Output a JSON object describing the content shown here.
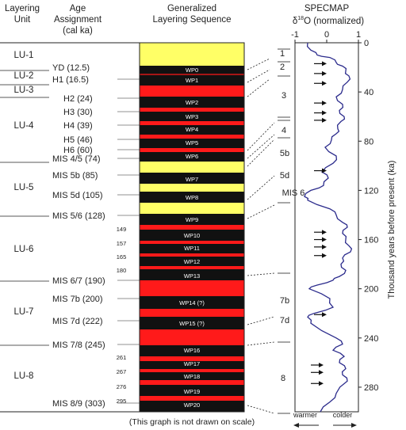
{
  "headers": {
    "unit": [
      "Layering",
      "Unit"
    ],
    "age": [
      "Age",
      "Assignment",
      "(cal ka)"
    ],
    "seq": [
      "Generalized",
      "Layering Sequence"
    ],
    "specmap": "SPECMAP",
    "delta_axis": [
      "δ",
      "18",
      "O (normalized)"
    ]
  },
  "colors": {
    "red": "#ff1a1a",
    "yellow": "#ffff66",
    "black": "#111111",
    "curve": "#2b2b8c"
  },
  "units": [
    "LU-1",
    "LU-2",
    "LU-3",
    "LU-4",
    "LU-5",
    "LU-6",
    "LU-7",
    "LU-8"
  ],
  "ages": [
    "YD  (12.5)",
    "H1  (16.5)",
    "H2  (24)",
    "H3  (30)",
    "H4  (39)",
    "H5  (46)",
    "H6  (60)",
    "MIS 4/5 (74)",
    "MIS 5b  (85)",
    "MIS 5d  (105)",
    "MIS 5/6 (128)",
    "MIS 6/7 (190)",
    "MIS 7b  (200)",
    "MIS 7d  (222)",
    "MIS 7/8 (245)",
    "MIS 8/9 (303)"
  ],
  "small_ages": [
    "149",
    "157",
    "165",
    "180",
    "261",
    "267",
    "276",
    "295"
  ],
  "wp_labels": [
    "WP0",
    "WP1",
    "WP2",
    "WP3",
    "WP4",
    "WP5",
    "WP6",
    "WP7",
    "WP8",
    "WP9",
    "WP10",
    "WP11",
    "WP12",
    "WP13",
    "WP14 (?)",
    "WP15 (?)",
    "WP16",
    "WP17",
    "WP18",
    "WP19",
    "WP20"
  ],
  "stage_labels": [
    "1",
    "2",
    "3",
    "4",
    "5b",
    "5d",
    "MIS 6",
    "7b",
    "7d",
    "8"
  ],
  "x_ticks": [
    "-1",
    "0",
    "1"
  ],
  "y_ticks": [
    "0",
    "40",
    "80",
    "120",
    "160",
    "200",
    "240",
    "280"
  ],
  "y_axis_title": "Thousand years before present (ka)",
  "note": "(This graph is not drawn on scale)",
  "warmer": "warmer",
  "colder": "colder",
  "chart_data": {
    "type": "line",
    "title": "SPECMAP",
    "xlabel": "δ18O (normalized)",
    "ylabel": "Thousand years before present (ka)",
    "xlim": [
      -1,
      1
    ],
    "ylim": [
      0,
      300
    ],
    "y_ticks": [
      0,
      40,
      80,
      120,
      160,
      200,
      240,
      280
    ],
    "series": [
      {
        "x": [
          -0.6,
          -0.5,
          -0.3,
          0.1,
          0.3,
          0.5,
          0.6,
          0.7,
          0.65,
          0.5,
          0.3,
          0.5,
          0.4,
          0.55,
          0.45,
          0.35,
          0.3,
          0.15,
          -0.05,
          0.3,
          0.2,
          -0.15,
          0.05,
          -0.1,
          -0.5,
          -0.7,
          -0.6,
          0.1,
          0.3,
          0.5,
          0.65,
          0.5,
          0.6,
          0.7,
          0.75,
          0.5,
          0.45,
          0.6,
          0.4,
          0.2,
          -0.3,
          -0.55,
          0.1,
          0.2,
          -0.4,
          -0.6,
          -0.5,
          0.3,
          0.5,
          0.2,
          0.55,
          0.4,
          0.6,
          0.5,
          0.65,
          0.3,
          0.1,
          -0.2
        ],
        "y": [
          0,
          6,
          10,
          12,
          16,
          19,
          23,
          27,
          32,
          38,
          44,
          50,
          55,
          60,
          64,
          70,
          74,
          79,
          85,
          92,
          98,
          105,
          110,
          116,
          120,
          125,
          128,
          135,
          140,
          146,
          150,
          155,
          160,
          165,
          170,
          175,
          180,
          185,
          190,
          193,
          197,
          200,
          208,
          215,
          220,
          223,
          228,
          240,
          245,
          250,
          255,
          260,
          265,
          270,
          275,
          285,
          292,
          300
        ]
      }
    ],
    "arrows_y": [
      17,
      25,
      33,
      49,
      57,
      63,
      104,
      154,
      160,
      166,
      173,
      221,
      262,
      268,
      277
    ]
  }
}
